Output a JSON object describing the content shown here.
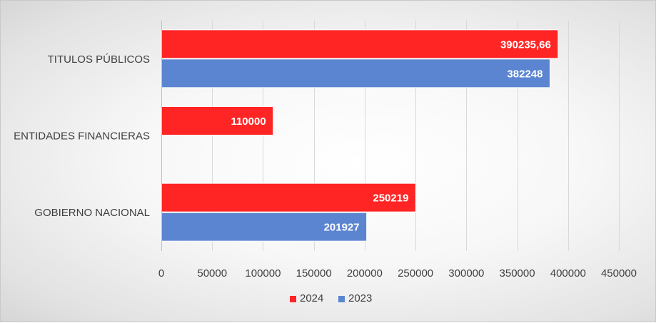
{
  "chart_data": {
    "type": "bar",
    "orientation": "horizontal",
    "categories": [
      "TITULOS PÚBLICOS",
      "ENTIDADES FINANCIERAS",
      "GOBIERNO NACIONAL"
    ],
    "series": [
      {
        "name": "2024",
        "color": "#ff2525",
        "values": [
          390235.66,
          110000,
          250219
        ],
        "labels": [
          "390235,66",
          "110000",
          "250219"
        ]
      },
      {
        "name": "2023",
        "color": "#5b85d0",
        "values": [
          382248,
          null,
          201927
        ],
        "labels": [
          "382248",
          "",
          "201927"
        ]
      }
    ],
    "xlim": [
      0,
      450000
    ],
    "xticks": [
      0,
      50000,
      100000,
      150000,
      200000,
      250000,
      300000,
      350000,
      400000,
      450000
    ],
    "xtick_labels": [
      "0",
      "50000",
      "100000",
      "150000",
      "200000",
      "250000",
      "300000",
      "350000",
      "400000",
      "450000"
    ],
    "grid": true,
    "legend_position": "bottom"
  }
}
